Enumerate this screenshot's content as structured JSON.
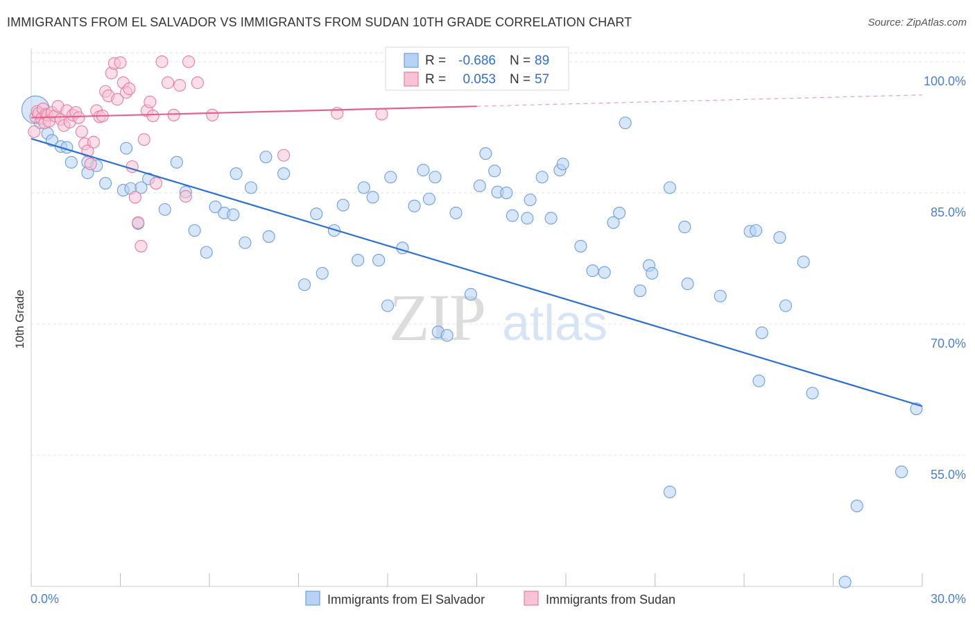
{
  "title": "IMMIGRANTS FROM EL SALVADOR VS IMMIGRANTS FROM SUDAN 10TH GRADE CORRELATION CHART",
  "source": "Source: ZipAtlas.com",
  "watermark": {
    "zip": "ZIP",
    "atlas": "atlas"
  },
  "stats_box": {
    "rows": [
      {
        "r_label": "R =",
        "r_value": "-0.686",
        "n_label": "N =",
        "n_value": "89"
      },
      {
        "r_label": "R =",
        "r_value": "0.053",
        "n_label": "N =",
        "n_value": "57"
      }
    ]
  },
  "chart_data": {
    "type": "scatter",
    "title": "IMMIGRANTS FROM EL SALVADOR VS IMMIGRANTS FROM SUDAN 10TH GRADE CORRELATION CHART",
    "xlabel": "",
    "ylabel": "10th Grade",
    "xlim": [
      0,
      30
    ],
    "ylim": [
      40,
      101.5
    ],
    "x_tick_labels": {
      "min": "0.0%",
      "max": "30.0%"
    },
    "y_ticks": [
      {
        "value": 100,
        "label": "100.0%"
      },
      {
        "value": 85,
        "label": "85.0%"
      },
      {
        "value": 70,
        "label": "70.0%"
      },
      {
        "value": 55,
        "label": "55.0%"
      }
    ],
    "grid": true,
    "legend_position": "bottom",
    "series": [
      {
        "name": "Immigrants from El Salvador",
        "color": "#6a9fe0",
        "fill": "#b8d2f4",
        "R": -0.686,
        "N": 89,
        "trend": {
          "x0": 0,
          "y0": 91.2,
          "x1": 30,
          "y1": 60.6
        },
        "points": [
          [
            0.15,
            94.5
          ],
          [
            0.3,
            93
          ],
          [
            0.55,
            91.8
          ],
          [
            0.7,
            91
          ],
          [
            1.0,
            90.3
          ],
          [
            1.2,
            90.2
          ],
          [
            1.35,
            88.5
          ],
          [
            1.9,
            88.5
          ],
          [
            2.2,
            88.1
          ],
          [
            1.9,
            87.3
          ],
          [
            2.5,
            86.1
          ],
          [
            3.1,
            85.3
          ],
          [
            3.2,
            90.1
          ],
          [
            3.35,
            85.5
          ],
          [
            3.6,
            81.5
          ],
          [
            3.7,
            85.6
          ],
          [
            3.95,
            86.6
          ],
          [
            4.5,
            83.1
          ],
          [
            4.9,
            88.5
          ],
          [
            5.2,
            85.1
          ],
          [
            5.5,
            80.7
          ],
          [
            6.2,
            83.4
          ],
          [
            5.9,
            78.2
          ],
          [
            6.5,
            82.7
          ],
          [
            6.8,
            82.5
          ],
          [
            6.9,
            87.2
          ],
          [
            7.2,
            79.3
          ],
          [
            7.4,
            85.6
          ],
          [
            7.9,
            89.1
          ],
          [
            8.0,
            80.0
          ],
          [
            8.5,
            87.2
          ],
          [
            9.2,
            74.5
          ],
          [
            9.6,
            82.6
          ],
          [
            9.8,
            75.8
          ],
          [
            10.2,
            80.7
          ],
          [
            10.5,
            83.6
          ],
          [
            11.0,
            77.3
          ],
          [
            11.2,
            85.6
          ],
          [
            11.5,
            84.5
          ],
          [
            11.7,
            77.3
          ],
          [
            12.0,
            72.1
          ],
          [
            12.1,
            86.8
          ],
          [
            12.5,
            78.7
          ],
          [
            12.9,
            83.5
          ],
          [
            13.2,
            87.6
          ],
          [
            13.4,
            84.3
          ],
          [
            13.6,
            86.8
          ],
          [
            13.7,
            69.1
          ],
          [
            14.0,
            68.7
          ],
          [
            14.3,
            82.7
          ],
          [
            14.8,
            73.4
          ],
          [
            15.1,
            85.8
          ],
          [
            15.3,
            89.5
          ],
          [
            15.6,
            87.5
          ],
          [
            15.7,
            85.1
          ],
          [
            16.0,
            85.0
          ],
          [
            16.2,
            82.4
          ],
          [
            16.7,
            82.1
          ],
          [
            16.8,
            84.2
          ],
          [
            17.2,
            86.8
          ],
          [
            17.5,
            82.1
          ],
          [
            17.8,
            87.6
          ],
          [
            17.9,
            88.3
          ],
          [
            18.5,
            78.9
          ],
          [
            18.9,
            76.1
          ],
          [
            19.3,
            75.9
          ],
          [
            19.6,
            81.6
          ],
          [
            19.8,
            82.7
          ],
          [
            20.0,
            93.0
          ],
          [
            20.5,
            73.8
          ],
          [
            20.8,
            76.7
          ],
          [
            20.9,
            75.8
          ],
          [
            21.5,
            85.6
          ],
          [
            22.0,
            81.1
          ],
          [
            22.1,
            74.6
          ],
          [
            23.2,
            73.2
          ],
          [
            24.2,
            80.6
          ],
          [
            24.4,
            80.7
          ],
          [
            24.6,
            69.0
          ],
          [
            25.2,
            79.9
          ],
          [
            25.4,
            72.1
          ],
          [
            26.0,
            77.1
          ],
          [
            26.3,
            62.1
          ],
          [
            29.8,
            60.3
          ],
          [
            24.5,
            63.5
          ],
          [
            29.3,
            53.1
          ],
          [
            21.5,
            50.8
          ],
          [
            27.8,
            49.2
          ],
          [
            27.4,
            40.5
          ]
        ]
      },
      {
        "name": "Immigrants from Sudan",
        "color": "#e87ca0",
        "fill": "#f8c3d4",
        "R": 0.053,
        "N": 57,
        "trend": {
          "x0": 0,
          "y0": 93.6,
          "x1": 30,
          "y1": 96.2,
          "solid_until": 15
        },
        "points": [
          [
            0.1,
            92.0
          ],
          [
            0.15,
            93.7
          ],
          [
            0.2,
            94.3
          ],
          [
            0.25,
            94.1
          ],
          [
            0.35,
            93.5
          ],
          [
            0.4,
            94.6
          ],
          [
            0.45,
            93.0
          ],
          [
            0.5,
            94.0
          ],
          [
            0.55,
            93.9
          ],
          [
            0.6,
            93.2
          ],
          [
            0.7,
            94.2
          ],
          [
            0.8,
            93.8
          ],
          [
            0.9,
            94.9
          ],
          [
            1.0,
            93.4
          ],
          [
            1.1,
            92.7
          ],
          [
            1.2,
            94.4
          ],
          [
            1.3,
            93.1
          ],
          [
            1.4,
            93.9
          ],
          [
            1.5,
            94.2
          ],
          [
            1.6,
            93.6
          ],
          [
            1.7,
            92.0
          ],
          [
            1.8,
            90.6
          ],
          [
            1.9,
            89.8
          ],
          [
            2.0,
            88.3
          ],
          [
            2.1,
            90.8
          ],
          [
            2.2,
            94.4
          ],
          [
            2.3,
            93.7
          ],
          [
            2.4,
            93.8
          ],
          [
            2.5,
            96.6
          ],
          [
            2.6,
            96.1
          ],
          [
            2.7,
            98.7
          ],
          [
            2.8,
            99.8
          ],
          [
            2.9,
            95.7
          ],
          [
            3.0,
            99.9
          ],
          [
            3.1,
            97.6
          ],
          [
            3.2,
            96.5
          ],
          [
            3.3,
            96.9
          ],
          [
            3.4,
            88.0
          ],
          [
            3.5,
            84.5
          ],
          [
            3.6,
            81.6
          ],
          [
            3.7,
            78.9
          ],
          [
            3.8,
            91.1
          ],
          [
            3.9,
            94.4
          ],
          [
            4.0,
            95.4
          ],
          [
            4.1,
            93.8
          ],
          [
            4.2,
            86.1
          ],
          [
            4.4,
            100.0
          ],
          [
            4.6,
            97.6
          ],
          [
            4.8,
            93.9
          ],
          [
            5.0,
            97.3
          ],
          [
            5.2,
            84.6
          ],
          [
            5.3,
            100.0
          ],
          [
            5.6,
            97.6
          ],
          [
            6.1,
            93.9
          ],
          [
            8.5,
            89.3
          ],
          [
            10.3,
            94.1
          ],
          [
            11.8,
            94.0
          ]
        ]
      }
    ]
  },
  "legend": {
    "items": [
      {
        "label": "Immigrants from El Salvador"
      },
      {
        "label": "Immigrants from Sudan"
      }
    ]
  }
}
